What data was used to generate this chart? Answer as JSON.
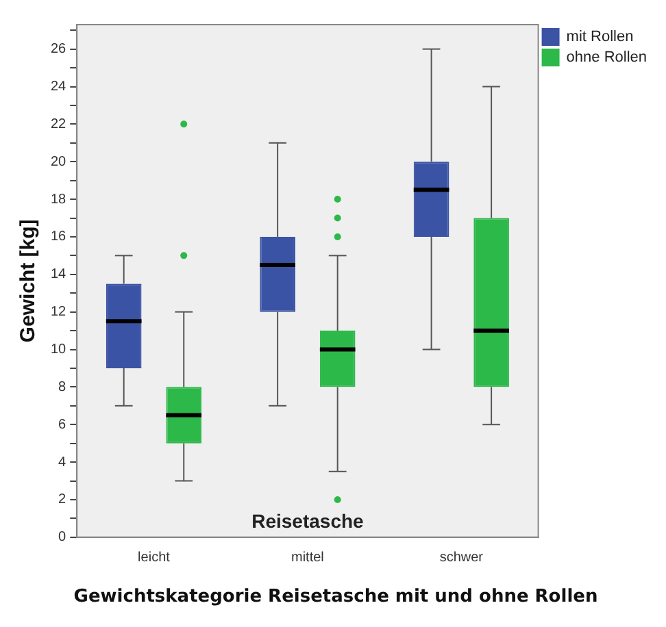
{
  "chart_data": {
    "type": "box",
    "title": "Gewichtskategorie Reisetasche mit und ohne Rollen",
    "xlabel": "Reisetasche",
    "ylabel": "Gewicht [kg]",
    "categories": [
      "leicht",
      "mittel",
      "schwer"
    ],
    "series": [
      {
        "name": "mit Rollen",
        "color": "#3b53a4",
        "boxes": [
          {
            "low": 7,
            "q1": 9,
            "median": 11.5,
            "q3": 13.5,
            "high": 15
          },
          {
            "low": 7,
            "q1": 12,
            "median": 14.5,
            "q3": 16,
            "high": 21
          },
          {
            "low": 10,
            "q1": 16,
            "median": 18.5,
            "q3": 20,
            "high": 26
          }
        ]
      },
      {
        "name": "ohne Rollen",
        "color": "#2db84a",
        "boxes": [
          {
            "low": 3,
            "q1": 5,
            "median": 6.5,
            "q3": 8,
            "high": 12,
            "outliers": [
              15,
              22
            ]
          },
          {
            "low": 3.5,
            "q1": 8,
            "median": 10,
            "q3": 11,
            "high": 15,
            "outliers": [
              2,
              16,
              17,
              18
            ]
          },
          {
            "low": 6,
            "q1": 8,
            "median": 11,
            "q3": 17,
            "high": 24
          }
        ]
      }
    ],
    "ylim": [
      0,
      27.3
    ],
    "yticks": [
      0,
      {
        "value": 1,
        "label": null
      },
      2,
      {
        "value": 3,
        "label": null
      },
      4,
      {
        "value": 5,
        "label": null
      },
      6,
      {
        "value": 7,
        "label": null
      },
      8,
      {
        "value": 9,
        "label": null
      },
      10,
      {
        "value": 11,
        "label": null
      },
      12,
      {
        "value": 13,
        "label": null
      },
      14,
      {
        "value": 15,
        "label": null
      },
      16,
      {
        "value": 17,
        "label": null
      },
      18,
      {
        "value": 19,
        "label": null
      },
      20,
      {
        "value": 21,
        "label": null
      },
      22,
      {
        "value": 23,
        "label": null
      },
      24,
      {
        "value": 25,
        "label": null
      },
      26,
      {
        "value": 27,
        "label": null
      }
    ],
    "grid": false,
    "legend": "top right"
  }
}
